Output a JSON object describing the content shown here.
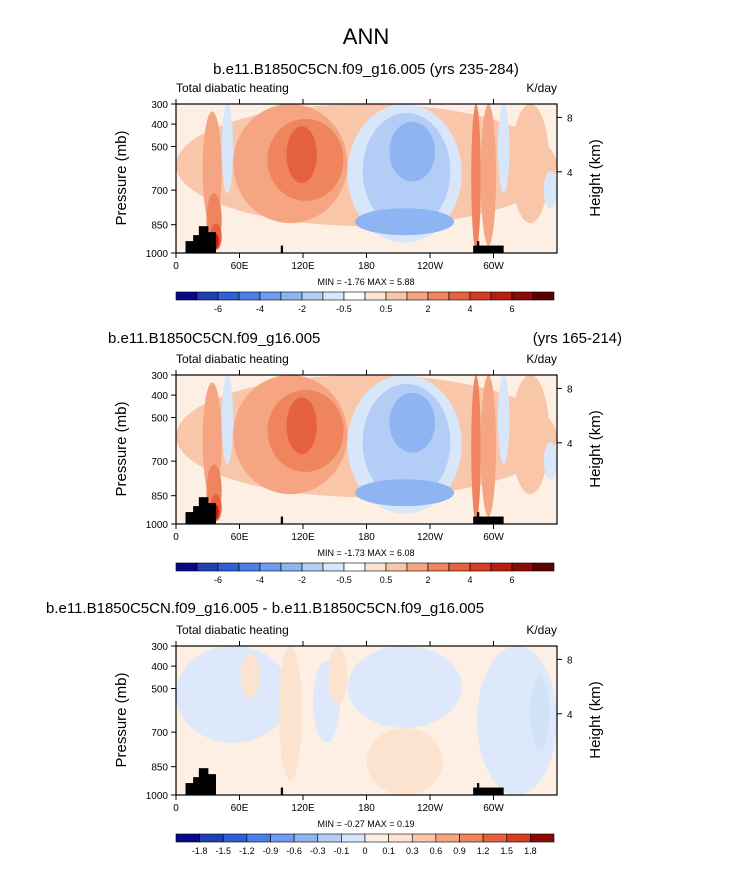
{
  "figure": {
    "title": "ANN"
  },
  "chart_data": [
    {
      "type": "heatmap",
      "panel": "top",
      "case_title": "b.e11.B1850C5CN.f09_g16.005 (yrs 235-284)",
      "years": "",
      "left_string": "Total diabatic heating",
      "right_string": "K/day",
      "ylabel": "Pressure (mb)",
      "ylabel_right": "Height (km)",
      "x_ticks": [
        "0",
        "60E",
        "120E",
        "180",
        "120W",
        "60W"
      ],
      "y_ticks": [
        "300",
        "400",
        "500",
        "700",
        "850",
        "1000"
      ],
      "height_ticks": [
        "8",
        "4"
      ],
      "stats": "MIN = -1.76  MAX =  5.88",
      "colorbar_labels": [
        "-6",
        "-4",
        "-2",
        "-0.5",
        "0.5",
        "2",
        "4",
        "6"
      ],
      "colorbar_colors": [
        "#08088a",
        "#1f3fb4",
        "#2e5fd6",
        "#4b7fe8",
        "#6d9cf0",
        "#8fb4f2",
        "#b3cdf6",
        "#d8e6f9",
        "#ffffff",
        "#fde3d2",
        "#f9c6a9",
        "#f5a582",
        "#f0845f",
        "#e6623e",
        "#d63e24",
        "#b81e12",
        "#8c0a06",
        "#5e0000"
      ],
      "field_colors": {
        "neutral": "#fdefe4",
        "light_blue": "#d8e6f9",
        "blue": "#b3cdf6",
        "mid_blue": "#8fb4f2",
        "light_red": "#f9c6a9",
        "red": "#f5a582",
        "mid_red": "#f0845f",
        "dark_red": "#e6623e",
        "deep_red": "#b81e12",
        "topography": "#000000"
      }
    },
    {
      "type": "heatmap",
      "panel": "middle",
      "case_title": "b.e11.B1850C5CN.f09_g16.005",
      "years": "(yrs 165-214)",
      "left_string": "Total diabatic heating",
      "right_string": "K/day",
      "ylabel": "Pressure (mb)",
      "ylabel_right": "Height (km)",
      "x_ticks": [
        "0",
        "60E",
        "120E",
        "180",
        "120W",
        "60W"
      ],
      "y_ticks": [
        "300",
        "400",
        "500",
        "700",
        "850",
        "1000"
      ],
      "height_ticks": [
        "8",
        "4"
      ],
      "stats": "MIN = -1.73  MAX =  6.08",
      "colorbar_labels": [
        "-6",
        "-4",
        "-2",
        "-0.5",
        "0.5",
        "2",
        "4",
        "6"
      ],
      "colorbar_colors": [
        "#08088a",
        "#1f3fb4",
        "#2e5fd6",
        "#4b7fe8",
        "#6d9cf0",
        "#8fb4f2",
        "#b3cdf6",
        "#d8e6f9",
        "#ffffff",
        "#fde3d2",
        "#f9c6a9",
        "#f5a582",
        "#f0845f",
        "#e6623e",
        "#d63e24",
        "#b81e12",
        "#8c0a06",
        "#5e0000"
      ],
      "field_colors": {
        "neutral": "#fdefe4",
        "light_blue": "#d8e6f9",
        "blue": "#b3cdf6",
        "mid_blue": "#8fb4f2",
        "light_red": "#f9c6a9",
        "red": "#f5a582",
        "mid_red": "#f0845f",
        "dark_red": "#e6623e",
        "deep_red": "#b81e12",
        "topography": "#000000"
      }
    },
    {
      "type": "heatmap",
      "panel": "bottom",
      "case_title": "b.e11.B1850C5CN.f09_g16.005 - b.e11.B1850C5CN.f09_g16.005",
      "years": "",
      "left_string": "Total diabatic heating",
      "right_string": "K/day",
      "ylabel": "Pressure (mb)",
      "ylabel_right": "Height (km)",
      "x_ticks": [
        "0",
        "60E",
        "120E",
        "180",
        "120W",
        "60W"
      ],
      "y_ticks": [
        "300",
        "400",
        "500",
        "700",
        "850",
        "1000"
      ],
      "height_ticks": [
        "8",
        "4"
      ],
      "stats": "MIN = -0.27  MAX =  0.19",
      "colorbar_labels": [
        "-1.8",
        "-1.5",
        "-1.2",
        "-0.9",
        "-0.6",
        "-0.3",
        "-0.1",
        "0",
        "0.1",
        "0.3",
        "0.6",
        "0.9",
        "1.2",
        "1.5",
        "1.8"
      ],
      "colorbar_colors": [
        "#08088a",
        "#1f3fb4",
        "#2e5fd6",
        "#4b7fe8",
        "#6d9cf0",
        "#8fb4f2",
        "#b3cdf6",
        "#d8e6f9",
        "#fdefe4",
        "#fde3d2",
        "#f9c6a9",
        "#f5a582",
        "#f0845f",
        "#e6623e",
        "#d63e24",
        "#8c0a06"
      ],
      "field_colors": {
        "neutral": "#fdefe4",
        "light_blue": "#dde9fa",
        "blue": "#d2e3f8",
        "light_red": "#fce3d0",
        "topography": "#000000"
      }
    }
  ]
}
